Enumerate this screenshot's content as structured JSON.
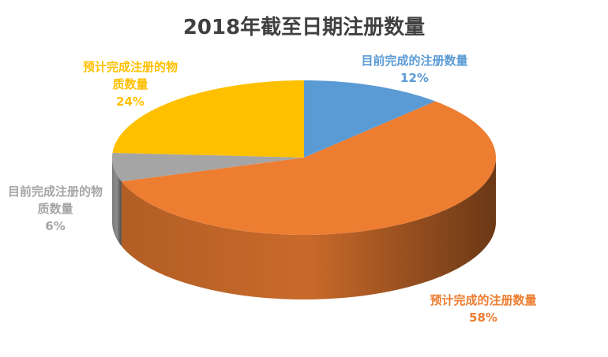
{
  "chart_data": {
    "type": "pie",
    "title": "2018年截至日期注册数量",
    "categories": [
      "目前完成的注册数量",
      "预计完成的注册数量",
      "目前完成注册的物质数量",
      "预计完成注册的物质数量"
    ],
    "values": [
      12,
      58,
      6,
      24
    ],
    "value_labels": [
      "12%",
      "58%",
      "6%",
      "24%"
    ],
    "colors": [
      "#5b9bd5",
      "#ed7d31",
      "#a5a5a5",
      "#ffc000"
    ]
  }
}
